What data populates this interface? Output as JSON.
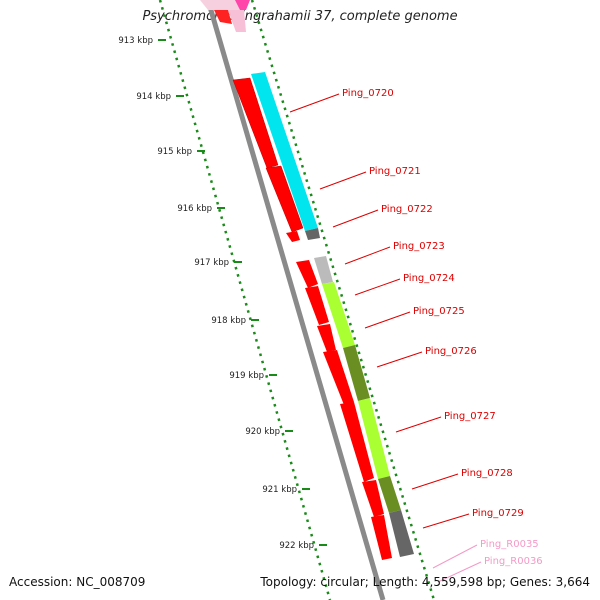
{
  "title": "Psychromonas ingrahamii 37, complete genome",
  "footer": {
    "accession": "Accession: NC_008709",
    "summary": "Topology: circular; Length: 4,559,598 bp; Genes: 3,664"
  },
  "scale_ticks": [
    {
      "label": "913 kbp"
    },
    {
      "label": "914 kbp"
    },
    {
      "label": "915 kbp"
    },
    {
      "label": "916 kbp"
    },
    {
      "label": "917 kbp"
    },
    {
      "label": "918 kbp"
    },
    {
      "label": "919 kbp"
    },
    {
      "label": "920 kbp"
    },
    {
      "label": "921 kbp"
    },
    {
      "label": "922 kbp"
    }
  ],
  "gene_labels": [
    {
      "label": "Ping_0720",
      "color": "#dd0000"
    },
    {
      "label": "Ping_0721",
      "color": "#dd0000"
    },
    {
      "label": "Ping_0722",
      "color": "#dd0000"
    },
    {
      "label": "Ping_0723",
      "color": "#dd0000"
    },
    {
      "label": "Ping_0724",
      "color": "#dd0000"
    },
    {
      "label": "Ping_0725",
      "color": "#dd0000"
    },
    {
      "label": "Ping_0726",
      "color": "#dd0000"
    },
    {
      "label": "Ping_0727",
      "color": "#dd0000"
    },
    {
      "label": "Ping_0728",
      "color": "#dd0000"
    },
    {
      "label": "Ping_0729",
      "color": "#dd0000"
    },
    {
      "label": "Ping_R0035",
      "color": "#f39ac6"
    },
    {
      "label": "Ping_R0036",
      "color": "#f39ac6"
    }
  ],
  "colors": {
    "backbone": "#8a8a8a",
    "scale_dots": "#1a8a1a",
    "cds": "#ff0000",
    "cyan": "#00e5ee",
    "lime": "#aaff33",
    "olive": "#6b8e23",
    "grey": "#777777",
    "pink": "#f39ac6"
  }
}
